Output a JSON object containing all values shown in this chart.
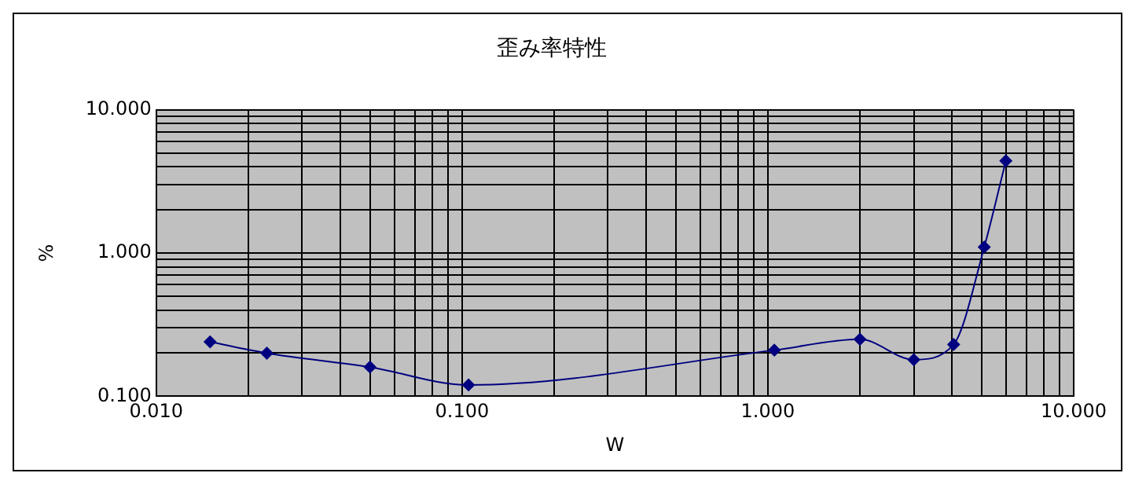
{
  "chart_data": {
    "type": "line",
    "title": "歪み率特性",
    "xlabel": "W",
    "ylabel": "%",
    "x": [
      0.015,
      0.023,
      0.05,
      0.105,
      1.05,
      2.0,
      3.0,
      4.05,
      5.1,
      6.0
    ],
    "series": [
      {
        "color": "#000080",
        "values": [
          0.24,
          0.2,
          0.16,
          0.12,
          0.21,
          0.25,
          0.18,
          0.23,
          1.1,
          4.4
        ]
      }
    ],
    "log": "xy",
    "xlim": [
      0.01,
      10
    ],
    "ylim": [
      0.1,
      10
    ],
    "xticks": [
      {
        "value": 0.01,
        "label": "0.010"
      },
      {
        "value": 0.02,
        "label": null
      },
      {
        "value": 0.03,
        "label": null
      },
      {
        "value": 0.04,
        "label": null
      },
      {
        "value": 0.05,
        "label": null
      },
      {
        "value": 0.06,
        "label": null
      },
      {
        "value": 0.07,
        "label": null
      },
      {
        "value": 0.08,
        "label": null
      },
      {
        "value": 0.09,
        "label": null
      },
      {
        "value": 0.1,
        "label": "0.100"
      },
      {
        "value": 0.2,
        "label": null
      },
      {
        "value": 0.3,
        "label": null
      },
      {
        "value": 0.4,
        "label": null
      },
      {
        "value": 0.5,
        "label": null
      },
      {
        "value": 0.6,
        "label": null
      },
      {
        "value": 0.7,
        "label": null
      },
      {
        "value": 0.8,
        "label": null
      },
      {
        "value": 0.9,
        "label": null
      },
      {
        "value": 1,
        "label": "1.000"
      },
      {
        "value": 2,
        "label": null
      },
      {
        "value": 3,
        "label": null
      },
      {
        "value": 4,
        "label": null
      },
      {
        "value": 5,
        "label": null
      },
      {
        "value": 6,
        "label": null
      },
      {
        "value": 7,
        "label": null
      },
      {
        "value": 8,
        "label": null
      },
      {
        "value": 9,
        "label": null
      },
      {
        "value": 10,
        "label": "10.000"
      }
    ],
    "yticks": [
      {
        "value": 0.1,
        "label": "0.100"
      },
      {
        "value": 0.2,
        "label": null
      },
      {
        "value": 0.3,
        "label": null
      },
      {
        "value": 0.4,
        "label": null
      },
      {
        "value": 0.5,
        "label": null
      },
      {
        "value": 0.6,
        "label": null
      },
      {
        "value": 0.7,
        "label": null
      },
      {
        "value": 0.8,
        "label": null
      },
      {
        "value": 0.9,
        "label": null
      },
      {
        "value": 1,
        "label": "1.000"
      },
      {
        "value": 2,
        "label": null
      },
      {
        "value": 3,
        "label": null
      },
      {
        "value": 4,
        "label": null
      },
      {
        "value": 5,
        "label": null
      },
      {
        "value": 6,
        "label": null
      },
      {
        "value": 7,
        "label": null
      },
      {
        "value": 8,
        "label": null
      },
      {
        "value": 9,
        "label": null
      },
      {
        "value": 10,
        "label": "10.000"
      }
    ],
    "grid": true,
    "legend": false,
    "marker": "diamond",
    "line_style": "solid"
  }
}
